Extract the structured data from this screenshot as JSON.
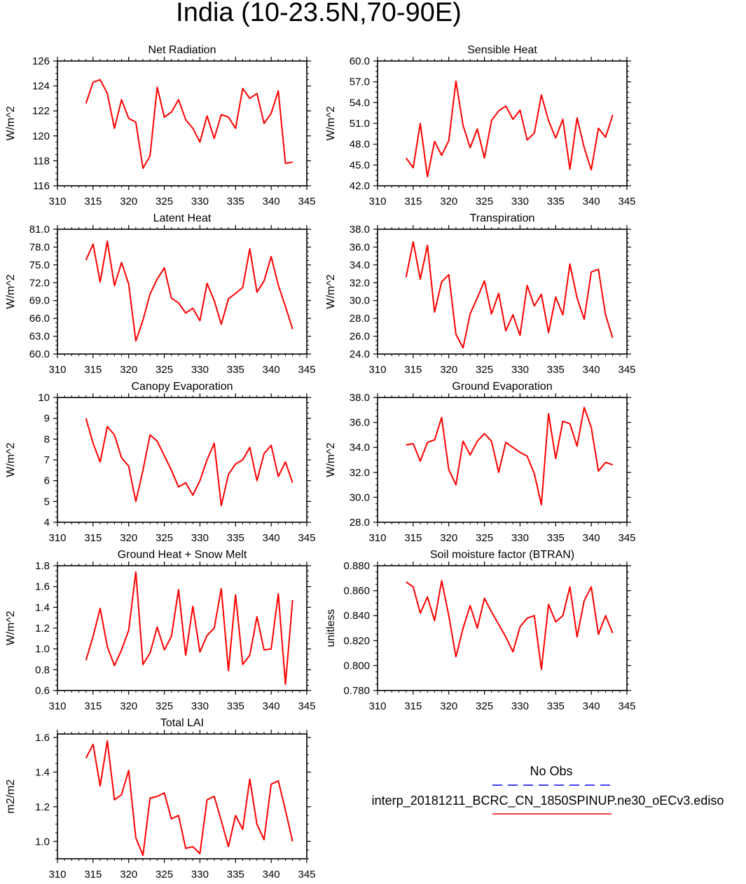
{
  "page": {
    "title": "India (10-23.5N,70-90E)"
  },
  "legend": {
    "obs_label": "No Obs",
    "model_label": "interp_20181211_BCRC_CN_1850SPINUP.ne30_oECv3.ediso",
    "obs_color": "#0000ff",
    "model_color": "#ff0000"
  },
  "chart_data": [
    {
      "type": "line",
      "title": "Net Radiation",
      "ylabel": "W/m^2",
      "xlim": [
        310,
        345
      ],
      "xticks": [
        "310",
        "315",
        "320",
        "325",
        "330",
        "335",
        "340",
        "345"
      ],
      "ylim": [
        116,
        126
      ],
      "yticks": [
        "116",
        "118",
        "120",
        "122",
        "124",
        "126"
      ],
      "series": [
        {
          "color": "#ff0000",
          "x": [
            314,
            315,
            316,
            317,
            318,
            319,
            320,
            321,
            322,
            323,
            324,
            325,
            326,
            327,
            328,
            329,
            330,
            331,
            332,
            333,
            334,
            335,
            336,
            337,
            338,
            339,
            340,
            341,
            342,
            343
          ],
          "values": [
            122.6,
            124.3,
            124.5,
            123.4,
            120.6,
            122.9,
            121.4,
            121.1,
            117.4,
            118.4,
            123.9,
            121.5,
            121.9,
            122.9,
            121.3,
            120.6,
            119.5,
            121.6,
            119.8,
            121.7,
            121.5,
            120.6,
            123.8,
            123.0,
            123.4,
            121.0,
            121.8,
            123.6,
            117.8,
            117.9
          ]
        }
      ]
    },
    {
      "type": "line",
      "title": "Sensible Heat",
      "ylabel": "W/m^2",
      "xlim": [
        310,
        345
      ],
      "xticks": [
        "310",
        "315",
        "320",
        "325",
        "330",
        "335",
        "340",
        "345"
      ],
      "ylim": [
        42,
        60
      ],
      "yticks": [
        "42.0",
        "45.0",
        "48.0",
        "51.0",
        "54.0",
        "57.0",
        "60.0"
      ],
      "series": [
        {
          "color": "#ff0000",
          "x": [
            314,
            315,
            316,
            317,
            318,
            319,
            320,
            321,
            322,
            323,
            324,
            325,
            326,
            327,
            328,
            329,
            330,
            331,
            332,
            333,
            334,
            335,
            336,
            337,
            338,
            339,
            340,
            341,
            342,
            343
          ],
          "values": [
            46.0,
            44.6,
            51.0,
            43.3,
            48.4,
            46.4,
            48.5,
            57.1,
            50.7,
            47.5,
            50.2,
            46.0,
            51.4,
            52.8,
            53.5,
            51.6,
            52.9,
            48.6,
            49.6,
            55.1,
            51.4,
            48.9,
            51.6,
            44.4,
            51.8,
            47.5,
            44.3,
            50.3,
            49.0,
            52.2
          ]
        }
      ]
    },
    {
      "type": "line",
      "title": "Latent Heat",
      "ylabel": "W/m^2",
      "xlim": [
        310,
        345
      ],
      "xticks": [
        "310",
        "315",
        "320",
        "325",
        "330",
        "335",
        "340",
        "345"
      ],
      "ylim": [
        60,
        81
      ],
      "yticks": [
        "60.0",
        "63.0",
        "66.0",
        "69.0",
        "72.0",
        "75.0",
        "78.0",
        "81.0"
      ],
      "series": [
        {
          "color": "#ff0000",
          "x": [
            314,
            315,
            316,
            317,
            318,
            319,
            320,
            321,
            322,
            323,
            324,
            325,
            326,
            327,
            328,
            329,
            330,
            331,
            332,
            333,
            334,
            335,
            336,
            337,
            338,
            339,
            340,
            341,
            342,
            343
          ],
          "values": [
            75.8,
            78.5,
            72.1,
            79.0,
            71.5,
            75.4,
            71.8,
            62.2,
            65.7,
            70.1,
            72.6,
            74.5,
            69.4,
            68.6,
            66.9,
            67.7,
            65.6,
            71.9,
            69.0,
            65.0,
            69.3,
            70.2,
            71.2,
            77.7,
            70.4,
            72.3,
            76.4,
            71.6,
            68.0,
            64.2
          ]
        }
      ]
    },
    {
      "type": "line",
      "title": "Transpiration",
      "ylabel": "W/m^2",
      "xlim": [
        310,
        345
      ],
      "xticks": [
        "310",
        "315",
        "320",
        "325",
        "330",
        "335",
        "340",
        "345"
      ],
      "ylim": [
        24,
        38
      ],
      "yticks": [
        "24.0",
        "26.0",
        "28.0",
        "30.0",
        "32.0",
        "34.0",
        "36.0",
        "38.0"
      ],
      "series": [
        {
          "color": "#ff0000",
          "x": [
            314,
            315,
            316,
            317,
            318,
            319,
            320,
            321,
            322,
            323,
            324,
            325,
            326,
            327,
            328,
            329,
            330,
            331,
            332,
            333,
            334,
            335,
            336,
            337,
            338,
            339,
            340,
            341,
            342,
            343
          ],
          "values": [
            32.6,
            36.6,
            32.4,
            36.2,
            28.7,
            32.1,
            32.9,
            26.2,
            24.7,
            28.5,
            30.3,
            32.2,
            28.5,
            30.8,
            26.6,
            28.4,
            26.1,
            31.7,
            29.4,
            30.7,
            26.4,
            30.4,
            28.4,
            34.1,
            30.3,
            27.9,
            33.2,
            33.5,
            28.4,
            25.8
          ]
        }
      ]
    },
    {
      "type": "line",
      "title": "Canopy Evaporation",
      "ylabel": "W/m^2",
      "xlim": [
        310,
        345
      ],
      "xticks": [
        "310",
        "315",
        "320",
        "325",
        "330",
        "335",
        "340",
        "345"
      ],
      "ylim": [
        4,
        10
      ],
      "yticks": [
        "4",
        "5",
        "6",
        "7",
        "8",
        "9",
        "10"
      ],
      "series": [
        {
          "color": "#ff0000",
          "x": [
            314,
            315,
            316,
            317,
            318,
            319,
            320,
            321,
            322,
            323,
            324,
            325,
            326,
            327,
            328,
            329,
            330,
            331,
            332,
            333,
            334,
            335,
            336,
            337,
            338,
            339,
            340,
            341,
            342,
            343
          ],
          "values": [
            9.0,
            7.8,
            6.9,
            8.6,
            8.2,
            7.1,
            6.7,
            5.0,
            6.5,
            8.2,
            7.9,
            7.2,
            6.5,
            5.7,
            5.9,
            5.3,
            6.0,
            7.0,
            7.8,
            4.8,
            6.3,
            6.8,
            7.0,
            7.6,
            6.0,
            7.3,
            7.7,
            6.2,
            6.9,
            5.9
          ]
        }
      ]
    },
    {
      "type": "line",
      "title": "Ground Evaporation",
      "ylabel": "W/m^2",
      "xlim": [
        310,
        345
      ],
      "xticks": [
        "310",
        "315",
        "320",
        "325",
        "330",
        "335",
        "340",
        "345"
      ],
      "ylim": [
        28,
        38
      ],
      "yticks": [
        "28.0",
        "30.0",
        "32.0",
        "34.0",
        "36.0",
        "38.0"
      ],
      "series": [
        {
          "color": "#ff0000",
          "x": [
            314,
            315,
            316,
            317,
            318,
            319,
            320,
            321,
            322,
            323,
            324,
            325,
            326,
            327,
            328,
            329,
            330,
            331,
            332,
            333,
            334,
            335,
            336,
            337,
            338,
            339,
            340,
            341,
            342,
            343
          ],
          "values": [
            34.2,
            34.3,
            32.9,
            34.4,
            34.6,
            36.4,
            32.2,
            31.0,
            34.5,
            33.4,
            34.5,
            35.1,
            34.5,
            32.0,
            34.4,
            34.0,
            33.6,
            33.3,
            31.9,
            29.4,
            36.7,
            33.1,
            36.1,
            35.9,
            34.1,
            37.2,
            35.6,
            32.1,
            32.8,
            32.6
          ]
        }
      ]
    },
    {
      "type": "line",
      "title": "Ground Heat + Snow Melt",
      "ylabel": "W/m^2",
      "xlim": [
        310,
        345
      ],
      "xticks": [
        "310",
        "315",
        "320",
        "325",
        "330",
        "335",
        "340",
        "345"
      ],
      "ylim": [
        0.6,
        1.8
      ],
      "yticks": [
        "0.6",
        "0.8",
        "1.0",
        "1.2",
        "1.4",
        "1.6",
        "1.8"
      ],
      "series": [
        {
          "color": "#ff0000",
          "x": [
            314,
            315,
            316,
            317,
            318,
            319,
            320,
            321,
            322,
            323,
            324,
            325,
            326,
            327,
            328,
            329,
            330,
            331,
            332,
            333,
            334,
            335,
            336,
            337,
            338,
            339,
            340,
            341,
            342,
            343
          ],
          "values": [
            0.89,
            1.12,
            1.39,
            1.02,
            0.84,
            0.99,
            1.18,
            1.74,
            0.85,
            0.96,
            1.21,
            0.99,
            1.12,
            1.57,
            0.94,
            1.41,
            0.97,
            1.13,
            1.2,
            1.58,
            0.79,
            1.52,
            0.85,
            0.94,
            1.31,
            0.99,
            1.0,
            1.53,
            0.66,
            1.47
          ]
        }
      ]
    },
    {
      "type": "line",
      "title": "Soil moisture factor (BTRAN)",
      "ylabel": "unitless",
      "xlim": [
        310,
        345
      ],
      "xticks": [
        "310",
        "315",
        "320",
        "325",
        "330",
        "335",
        "340",
        "345"
      ],
      "ylim": [
        0.78,
        0.88
      ],
      "yticks": [
        "0.780",
        "0.800",
        "0.820",
        "0.840",
        "0.860",
        "0.880"
      ],
      "series": [
        {
          "color": "#ff0000",
          "x": [
            314,
            315,
            316,
            317,
            318,
            319,
            320,
            321,
            322,
            323,
            324,
            325,
            326,
            327,
            328,
            329,
            330,
            331,
            332,
            333,
            334,
            335,
            336,
            337,
            338,
            339,
            340,
            341,
            342,
            343
          ],
          "values": [
            0.867,
            0.863,
            0.842,
            0.855,
            0.836,
            0.868,
            0.84,
            0.807,
            0.83,
            0.848,
            0.83,
            0.854,
            0.843,
            0.833,
            0.823,
            0.811,
            0.831,
            0.838,
            0.84,
            0.797,
            0.849,
            0.835,
            0.84,
            0.863,
            0.823,
            0.852,
            0.863,
            0.825,
            0.84,
            0.826
          ]
        }
      ]
    },
    {
      "type": "line",
      "title": "Total LAI",
      "ylabel": "m2/m2",
      "xlim": [
        310,
        345
      ],
      "xticks": [
        "310",
        "315",
        "320",
        "325",
        "330",
        "335",
        "340",
        "345"
      ],
      "ylim": [
        0.9,
        1.62
      ],
      "yticks": [
        "1.0",
        "1.2",
        "1.4",
        "1.6"
      ],
      "yticks_values": [
        1.0,
        1.2,
        1.4,
        1.6
      ],
      "series": [
        {
          "color": "#ff0000",
          "x": [
            314,
            315,
            316,
            317,
            318,
            319,
            320,
            321,
            322,
            323,
            324,
            325,
            326,
            327,
            328,
            329,
            330,
            331,
            332,
            333,
            334,
            335,
            336,
            337,
            338,
            339,
            340,
            341,
            342,
            343
          ],
          "values": [
            1.48,
            1.56,
            1.32,
            1.58,
            1.24,
            1.27,
            1.41,
            1.02,
            0.92,
            1.25,
            1.26,
            1.28,
            1.13,
            1.15,
            0.96,
            0.97,
            0.93,
            1.24,
            1.26,
            1.12,
            0.97,
            1.15,
            1.07,
            1.36,
            1.1,
            1.01,
            1.33,
            1.35,
            1.18,
            1.0
          ]
        }
      ]
    }
  ]
}
